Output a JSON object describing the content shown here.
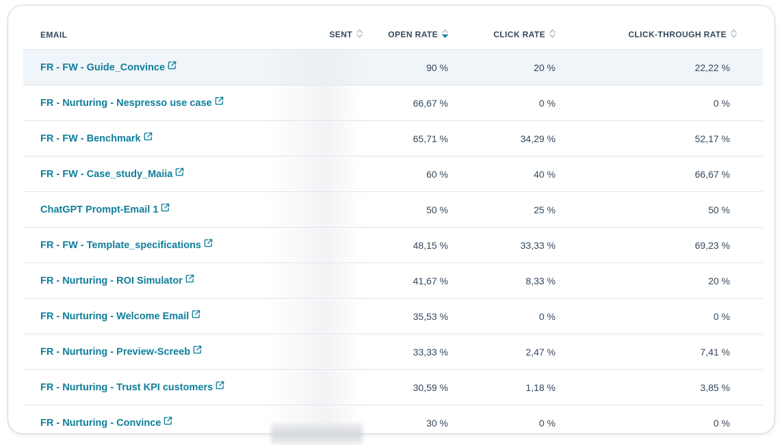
{
  "table": {
    "columns": [
      {
        "label": "EMAIL",
        "sortable": false
      },
      {
        "label": "SENT",
        "sortable": true,
        "sort_state": "none"
      },
      {
        "label": "OPEN RATE",
        "sortable": true,
        "sort_state": "descending"
      },
      {
        "label": "CLICK RATE",
        "sortable": true,
        "sort_state": "none"
      },
      {
        "label": "CLICK-THROUGH RATE",
        "sortable": true,
        "sort_state": "none"
      }
    ],
    "rows": [
      {
        "email": "FR - FW - Guide_Convince",
        "sent": "",
        "open_rate": "90 %",
        "click_rate": "20 %",
        "ctr": "22,22 %",
        "highlighted": true
      },
      {
        "email": "FR - Nurturing - Nespresso use case",
        "sent": "",
        "open_rate": "66,67 %",
        "click_rate": "0 %",
        "ctr": "0 %"
      },
      {
        "email": "FR - FW - Benchmark",
        "sent": "",
        "open_rate": "65,71 %",
        "click_rate": "34,29 %",
        "ctr": "52,17 %"
      },
      {
        "email": "FR - FW - Case_study_Maiia",
        "sent": "",
        "open_rate": "60 %",
        "click_rate": "40 %",
        "ctr": "66,67 %"
      },
      {
        "email": "ChatGPT Prompt-Email 1",
        "sent": "",
        "open_rate": "50 %",
        "click_rate": "25 %",
        "ctr": "50 %"
      },
      {
        "email": "FR - FW - Template_specifications",
        "sent": "",
        "open_rate": "48,15 %",
        "click_rate": "33,33 %",
        "ctr": "69,23 %"
      },
      {
        "email": "FR - Nurturing - ROI Simulator",
        "sent": "",
        "open_rate": "41,67 %",
        "click_rate": "8,33 %",
        "ctr": "20 %"
      },
      {
        "email": "FR - Nurturing - Welcome Email",
        "sent": "",
        "open_rate": "35,53 %",
        "click_rate": "0 %",
        "ctr": "0 %"
      },
      {
        "email": "FR - Nurturing - Preview-Screeb",
        "sent": "",
        "open_rate": "33,33 %",
        "click_rate": "2,47 %",
        "ctr": "7,41 %"
      },
      {
        "email": "FR - Nurturing - Trust KPI customers",
        "sent": "",
        "open_rate": "30,59 %",
        "click_rate": "1,18 %",
        "ctr": "3,85 %"
      },
      {
        "email": "FR - Nurturing - Convince",
        "sent": "",
        "open_rate": "30 %",
        "click_rate": "0 %",
        "ctr": "0 %"
      }
    ]
  },
  "colors": {
    "link": "#0f7e9a",
    "header_text": "#33475b",
    "sort_active": "#0f7e9a",
    "sort_inactive": "#b0bcc9",
    "row_highlight": "#f0f5f9",
    "divider": "#dfe3eb"
  },
  "icons": {
    "email_link": "external-link-icon",
    "sort": "sort-arrows-icon"
  }
}
